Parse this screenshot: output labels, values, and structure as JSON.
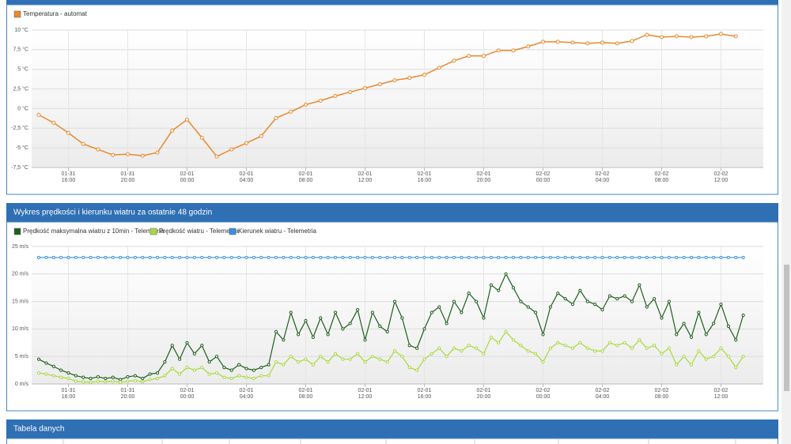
{
  "chart_data": [
    {
      "type": "line",
      "x": [
        "01-31 14:00",
        "01-31 15:00",
        "01-31 16:00",
        "01-31 17:00",
        "01-31 18:00",
        "01-31 19:00",
        "01-31 20:00",
        "01-31 21:00",
        "01-31 22:00",
        "01-31 23:00",
        "02-01 00:00",
        "02-01 01:00",
        "02-01 02:00",
        "02-01 03:00",
        "02-01 04:00",
        "02-01 05:00",
        "02-01 06:00",
        "02-01 07:00",
        "02-01 08:00",
        "02-01 09:00",
        "02-01 10:00",
        "02-01 11:00",
        "02-01 12:00",
        "02-01 13:00",
        "02-01 14:00",
        "02-01 15:00",
        "02-01 16:00",
        "02-01 17:00",
        "02-01 18:00",
        "02-01 19:00",
        "02-01 20:00",
        "02-01 21:00",
        "02-01 22:00",
        "02-01 23:00",
        "02-02 00:00",
        "02-02 01:00",
        "02-02 02:00",
        "02-02 03:00",
        "02-02 04:00",
        "02-02 05:00",
        "02-02 06:00",
        "02-02 07:00",
        "02-02 08:00",
        "02-02 09:00",
        "02-02 10:00",
        "02-02 11:00",
        "02-02 12:00",
        "02-02 13:00"
      ],
      "series": [
        {
          "name": "Temperatura - automat",
          "color": "#e8892c",
          "values": [
            -0.8,
            -1.8,
            -3.1,
            -4.5,
            -5.2,
            -5.9,
            -5.8,
            -6.0,
            -5.6,
            -2.8,
            -1.4,
            -3.7,
            -6.1,
            -5.2,
            -4.4,
            -3.5,
            -1.2,
            -0.4,
            0.5,
            1.0,
            1.6,
            2.1,
            2.6,
            3.1,
            3.6,
            3.9,
            4.3,
            5.2,
            6.1,
            6.7,
            6.7,
            7.4,
            7.4,
            7.9,
            8.5,
            8.5,
            8.4,
            8.3,
            8.4,
            8.3,
            8.6,
            9.4,
            9.1,
            9.2,
            9.1,
            9.2,
            9.5,
            9.2
          ]
        }
      ],
      "ylim": [
        -7.5,
        10
      ],
      "yticks": [
        {
          "value": -7.5,
          "label": "-7,5 °C"
        },
        {
          "value": -5,
          "label": "-5 °C"
        },
        {
          "value": -2.5,
          "label": "-2,5 °C"
        },
        {
          "value": 0,
          "label": "0 °C"
        },
        {
          "value": 2.5,
          "label": "2,5 °C"
        },
        {
          "value": 5,
          "label": "5 °C"
        },
        {
          "value": 7.5,
          "label": "7,5 °C"
        },
        {
          "value": 10,
          "label": "10 °C"
        }
      ],
      "xticks": [
        {
          "date": "01-31",
          "time": "16:00"
        },
        {
          "date": "01-31",
          "time": "20:00"
        },
        {
          "date": "02-01",
          "time": "00:00"
        },
        {
          "date": "02-01",
          "time": "04:00"
        },
        {
          "date": "02-01",
          "time": "08:00"
        },
        {
          "date": "02-01",
          "time": "12:00"
        },
        {
          "date": "02-01",
          "time": "16:00"
        },
        {
          "date": "02-01",
          "time": "20:00"
        },
        {
          "date": "02-02",
          "time": "00:00"
        },
        {
          "date": "02-02",
          "time": "04:00"
        },
        {
          "date": "02-02",
          "time": "08:00"
        },
        {
          "date": "02-02",
          "time": "12:00"
        }
      ],
      "grid": true
    },
    {
      "type": "line",
      "title": "Wykres prędkości i kierunku wiatru za ostatnie 48 godzin",
      "x": [
        "01-31 14:00",
        "01-31 14:30",
        "01-31 15:00",
        "01-31 15:30",
        "01-31 16:00",
        "01-31 16:30",
        "01-31 17:00",
        "01-31 17:30",
        "01-31 18:00",
        "01-31 18:30",
        "01-31 19:00",
        "01-31 19:30",
        "01-31 20:00",
        "01-31 20:30",
        "01-31 21:00",
        "01-31 21:30",
        "01-31 22:00",
        "01-31 22:30",
        "01-31 23:00",
        "01-31 23:30",
        "02-01 00:00",
        "02-01 00:30",
        "02-01 01:00",
        "02-01 01:30",
        "02-01 02:00",
        "02-01 02:30",
        "02-01 03:00",
        "02-01 03:30",
        "02-01 04:00",
        "02-01 04:30",
        "02-01 05:00",
        "02-01 05:30",
        "02-01 06:00",
        "02-01 06:30",
        "02-01 07:00",
        "02-01 07:30",
        "02-01 08:00",
        "02-01 08:30",
        "02-01 09:00",
        "02-01 09:30",
        "02-01 10:00",
        "02-01 10:30",
        "02-01 11:00",
        "02-01 11:30",
        "02-01 12:00",
        "02-01 12:30",
        "02-01 13:00",
        "02-01 13:30",
        "02-01 14:00",
        "02-01 14:30",
        "02-01 15:00",
        "02-01 15:30",
        "02-01 16:00",
        "02-01 16:30",
        "02-01 17:00",
        "02-01 17:30",
        "02-01 18:00",
        "02-01 18:30",
        "02-01 19:00",
        "02-01 19:30",
        "02-01 20:00",
        "02-01 20:30",
        "02-01 21:00",
        "02-01 21:30",
        "02-01 22:00",
        "02-01 22:30",
        "02-01 23:00",
        "02-01 23:30",
        "02-02 00:00",
        "02-02 00:30",
        "02-02 01:00",
        "02-02 01:30",
        "02-02 02:00",
        "02-02 02:30",
        "02-02 03:00",
        "02-02 03:30",
        "02-02 04:00",
        "02-02 04:30",
        "02-02 05:00",
        "02-02 05:30",
        "02-02 06:00",
        "02-02 06:30",
        "02-02 07:00",
        "02-02 07:30",
        "02-02 08:00",
        "02-02 08:30",
        "02-02 09:00",
        "02-02 09:30",
        "02-02 10:00",
        "02-02 10:30",
        "02-02 11:00",
        "02-02 11:30",
        "02-02 12:00",
        "02-02 12:30",
        "02-02 13:00",
        "02-02 13:30"
      ],
      "series": [
        {
          "name": "Prędkość maksymalna wiatru z 10min - Telemetria",
          "color": "#1e5e1e",
          "values": [
            4.5,
            3.8,
            3.2,
            2.5,
            2.0,
            1.5,
            1.2,
            1.0,
            1.3,
            1.0,
            1.2,
            0.8,
            1.3,
            1.5,
            1.0,
            1.8,
            2.0,
            4.0,
            7.0,
            4.5,
            7.5,
            5.5,
            7.0,
            4.0,
            5.0,
            3.0,
            2.5,
            3.5,
            2.8,
            2.5,
            3.0,
            3.5,
            9.5,
            8.0,
            13.0,
            9.0,
            11.5,
            8.5,
            12.0,
            9.0,
            13.0,
            10.0,
            11.0,
            13.5,
            8.0,
            13.0,
            10.5,
            9.5,
            15.0,
            12.0,
            7.0,
            6.5,
            10.0,
            13.0,
            14.0,
            11.0,
            15.0,
            13.0,
            16.5,
            15.0,
            12.0,
            18.0,
            17.0,
            20.0,
            17.5,
            15.0,
            14.0,
            13.0,
            9.0,
            14.0,
            16.5,
            15.5,
            14.5,
            17.0,
            15.0,
            14.5,
            13.5,
            16.0,
            15.5,
            16.0,
            15.0,
            18.0,
            14.0,
            15.5,
            12.0,
            15.0,
            9.0,
            11.0,
            8.5,
            13.0,
            9.0,
            11.0,
            14.5,
            10.5,
            8.0,
            12.5
          ]
        },
        {
          "name": "Prędkość wiatru - Telemetria",
          "color": "#a8d83c",
          "values": [
            2.0,
            1.8,
            1.5,
            1.2,
            1.0,
            0.5,
            0.4,
            0.3,
            0.5,
            0.4,
            0.5,
            0.3,
            0.5,
            0.6,
            0.4,
            0.8,
            1.0,
            1.5,
            2.8,
            1.8,
            3.0,
            2.5,
            3.0,
            1.8,
            2.0,
            1.2,
            1.0,
            1.5,
            1.2,
            1.0,
            1.5,
            1.5,
            4.0,
            3.5,
            5.0,
            4.0,
            4.5,
            3.5,
            5.0,
            4.0,
            5.5,
            4.5,
            4.5,
            5.5,
            4.0,
            5.0,
            4.5,
            4.0,
            6.0,
            5.0,
            3.0,
            2.5,
            4.5,
            5.5,
            6.5,
            5.0,
            6.5,
            6.0,
            7.0,
            6.5,
            5.5,
            8.5,
            7.5,
            9.5,
            8.0,
            7.0,
            6.0,
            5.5,
            4.0,
            6.5,
            7.5,
            7.0,
            6.5,
            7.5,
            6.5,
            6.0,
            6.0,
            7.5,
            7.0,
            7.5,
            6.5,
            8.0,
            6.5,
            7.0,
            5.5,
            6.5,
            3.5,
            5.0,
            3.5,
            6.0,
            4.5,
            5.0,
            6.5,
            5.0,
            3.0,
            5.0
          ]
        },
        {
          "name": "Kierunek wiatru - Telemetria",
          "color": "#3b8fe0",
          "values": [
            23,
            23,
            23,
            23,
            23,
            23,
            23,
            23,
            23,
            23,
            23,
            23,
            23,
            23,
            23,
            23,
            23,
            23,
            23,
            23,
            23,
            23,
            23,
            23,
            23,
            23,
            23,
            23,
            23,
            23,
            23,
            23,
            23,
            23,
            23,
            23,
            23,
            23,
            23,
            23,
            23,
            23,
            23,
            23,
            23,
            23,
            23,
            23,
            23,
            23,
            23,
            23,
            23,
            23,
            23,
            23,
            23,
            23,
            23,
            23,
            23,
            23,
            23,
            23,
            23,
            23,
            23,
            23,
            23,
            23,
            23,
            23,
            23,
            23,
            23,
            23,
            23,
            23,
            23,
            23,
            23,
            23,
            23,
            23,
            23,
            23,
            23,
            23,
            23,
            23,
            23,
            23,
            23,
            23,
            23,
            23
          ]
        }
      ],
      "ylim": [
        0,
        25
      ],
      "yticks": [
        {
          "value": 0,
          "label": "0 m/s"
        },
        {
          "value": 5,
          "label": "5 m/s"
        },
        {
          "value": 10,
          "label": "10 m/s"
        },
        {
          "value": 15,
          "label": "15 m/s"
        },
        {
          "value": 20,
          "label": "20 m/s"
        },
        {
          "value": 25,
          "label": "25 m/s"
        }
      ],
      "xticks": [
        {
          "date": "01-31",
          "time": "16:00"
        },
        {
          "date": "01-31",
          "time": "20:00"
        },
        {
          "date": "02-01",
          "time": "00:00"
        },
        {
          "date": "02-01",
          "time": "04:00"
        },
        {
          "date": "02-01",
          "time": "08:00"
        },
        {
          "date": "02-01",
          "time": "12:00"
        },
        {
          "date": "02-01",
          "time": "16:00"
        },
        {
          "date": "02-01",
          "time": "20:00"
        },
        {
          "date": "02-02",
          "time": "00:00"
        },
        {
          "date": "02-02",
          "time": "04:00"
        },
        {
          "date": "02-02",
          "time": "08:00"
        },
        {
          "date": "02-02",
          "time": "12:00"
        }
      ],
      "grid": true
    }
  ],
  "table_panel": {
    "title": "Tabela danych"
  }
}
